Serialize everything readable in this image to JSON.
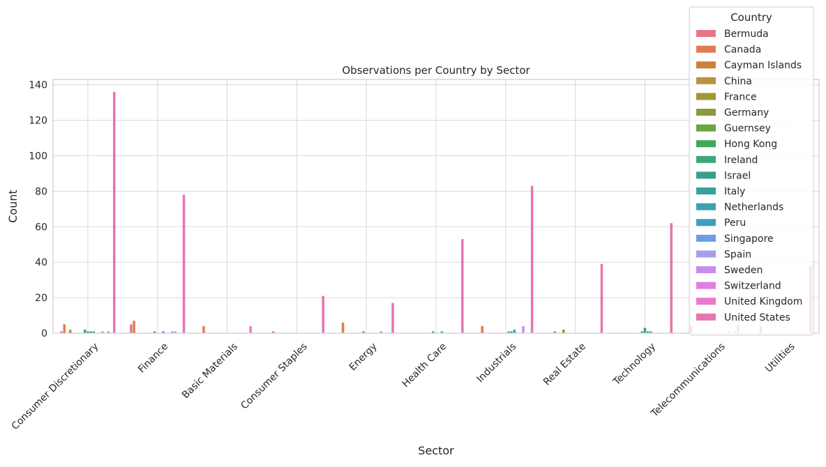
{
  "chart_data": {
    "type": "bar",
    "title": "Observations per Country by Sector",
    "xlabel": "Sector",
    "ylabel": "Count",
    "ylim": [
      0,
      143
    ],
    "yticks": [
      0,
      20,
      40,
      60,
      80,
      100,
      120,
      140
    ],
    "grid": true,
    "legend": {
      "title": "Country",
      "placement": "top-right"
    },
    "categories": [
      "Consumer Discretionary",
      "Finance",
      "Basic Materials",
      "Consumer Staples",
      "Energy",
      "Health Care",
      "Industrials",
      "Real Estate",
      "Technology",
      "Telecommunications",
      "Utilities"
    ],
    "series": [
      {
        "name": "Bermuda",
        "color": "#e8768a",
        "values": [
          1,
          5,
          0,
          0,
          0,
          0,
          0,
          0,
          0,
          0,
          0
        ]
      },
      {
        "name": "Canada",
        "color": "#e37a53",
        "values": [
          5,
          7,
          4,
          1,
          6,
          0,
          4,
          0,
          0,
          4,
          4
        ]
      },
      {
        "name": "Cayman Islands",
        "color": "#cc8339",
        "values": [
          0,
          0,
          0,
          0,
          0,
          0,
          0,
          1,
          0,
          0,
          0
        ]
      },
      {
        "name": "China",
        "color": "#b89440",
        "values": [
          2,
          0,
          0,
          0,
          0,
          0,
          0,
          0,
          0,
          0,
          0
        ]
      },
      {
        "name": "France",
        "color": "#a09735",
        "values": [
          0,
          0,
          0,
          0,
          0,
          0,
          0,
          0,
          0,
          0,
          0
        ]
      },
      {
        "name": "Germany",
        "color": "#8a9a3d",
        "values": [
          0,
          0,
          0,
          0,
          0,
          0,
          0,
          2,
          0,
          0,
          0
        ]
      },
      {
        "name": "Guernsey",
        "color": "#6ba33d",
        "values": [
          0,
          0,
          0,
          0,
          0,
          0,
          0,
          0,
          0,
          0,
          0
        ]
      },
      {
        "name": "Hong Kong",
        "color": "#3eaa57",
        "values": [
          0,
          0,
          0,
          0,
          0,
          0,
          0,
          0,
          0,
          0,
          0
        ]
      },
      {
        "name": "Ireland",
        "color": "#3ea57c",
        "values": [
          2,
          1,
          0,
          0,
          1,
          1,
          0,
          0,
          1,
          0,
          0
        ]
      },
      {
        "name": "Israel",
        "color": "#36a08d",
        "values": [
          1,
          0,
          0,
          0,
          0,
          0,
          0,
          0,
          3,
          0,
          0
        ]
      },
      {
        "name": "Italy",
        "color": "#38a19e",
        "values": [
          1,
          0,
          0,
          0,
          0,
          0,
          1,
          0,
          1,
          0,
          0
        ]
      },
      {
        "name": "Netherlands",
        "color": "#3ba2ae",
        "values": [
          1,
          1,
          0,
          0,
          0,
          1,
          1,
          0,
          1,
          0,
          0
        ]
      },
      {
        "name": "Peru",
        "color": "#3d9dc2",
        "values": [
          0,
          0,
          0,
          0,
          0,
          0,
          2,
          0,
          0,
          0,
          0
        ]
      },
      {
        "name": "Singapore",
        "color": "#6b9de8",
        "values": [
          0,
          0,
          0,
          0,
          0,
          0,
          0,
          0,
          0,
          0,
          0
        ]
      },
      {
        "name": "Spain",
        "color": "#a69df0",
        "values": [
          1,
          1,
          0,
          0,
          1,
          0,
          0,
          0,
          0,
          1,
          0
        ]
      },
      {
        "name": "Sweden",
        "color": "#c88cef",
        "values": [
          0,
          1,
          0,
          0,
          0,
          0,
          4,
          0,
          0,
          0,
          0
        ]
      },
      {
        "name": "Switzerland",
        "color": "#e27ee4",
        "values": [
          1,
          0,
          0,
          0,
          0,
          0,
          0,
          0,
          0,
          1,
          0
        ]
      },
      {
        "name": "United Kingdom",
        "color": "#ea78cc",
        "values": [
          0,
          0,
          4,
          0,
          0,
          0,
          0,
          0,
          0,
          5,
          0
        ]
      },
      {
        "name": "United States",
        "color": "#e775b0",
        "values": [
          136,
          78,
          0,
          21,
          17,
          53,
          83,
          39,
          62,
          0,
          38
        ]
      }
    ]
  }
}
